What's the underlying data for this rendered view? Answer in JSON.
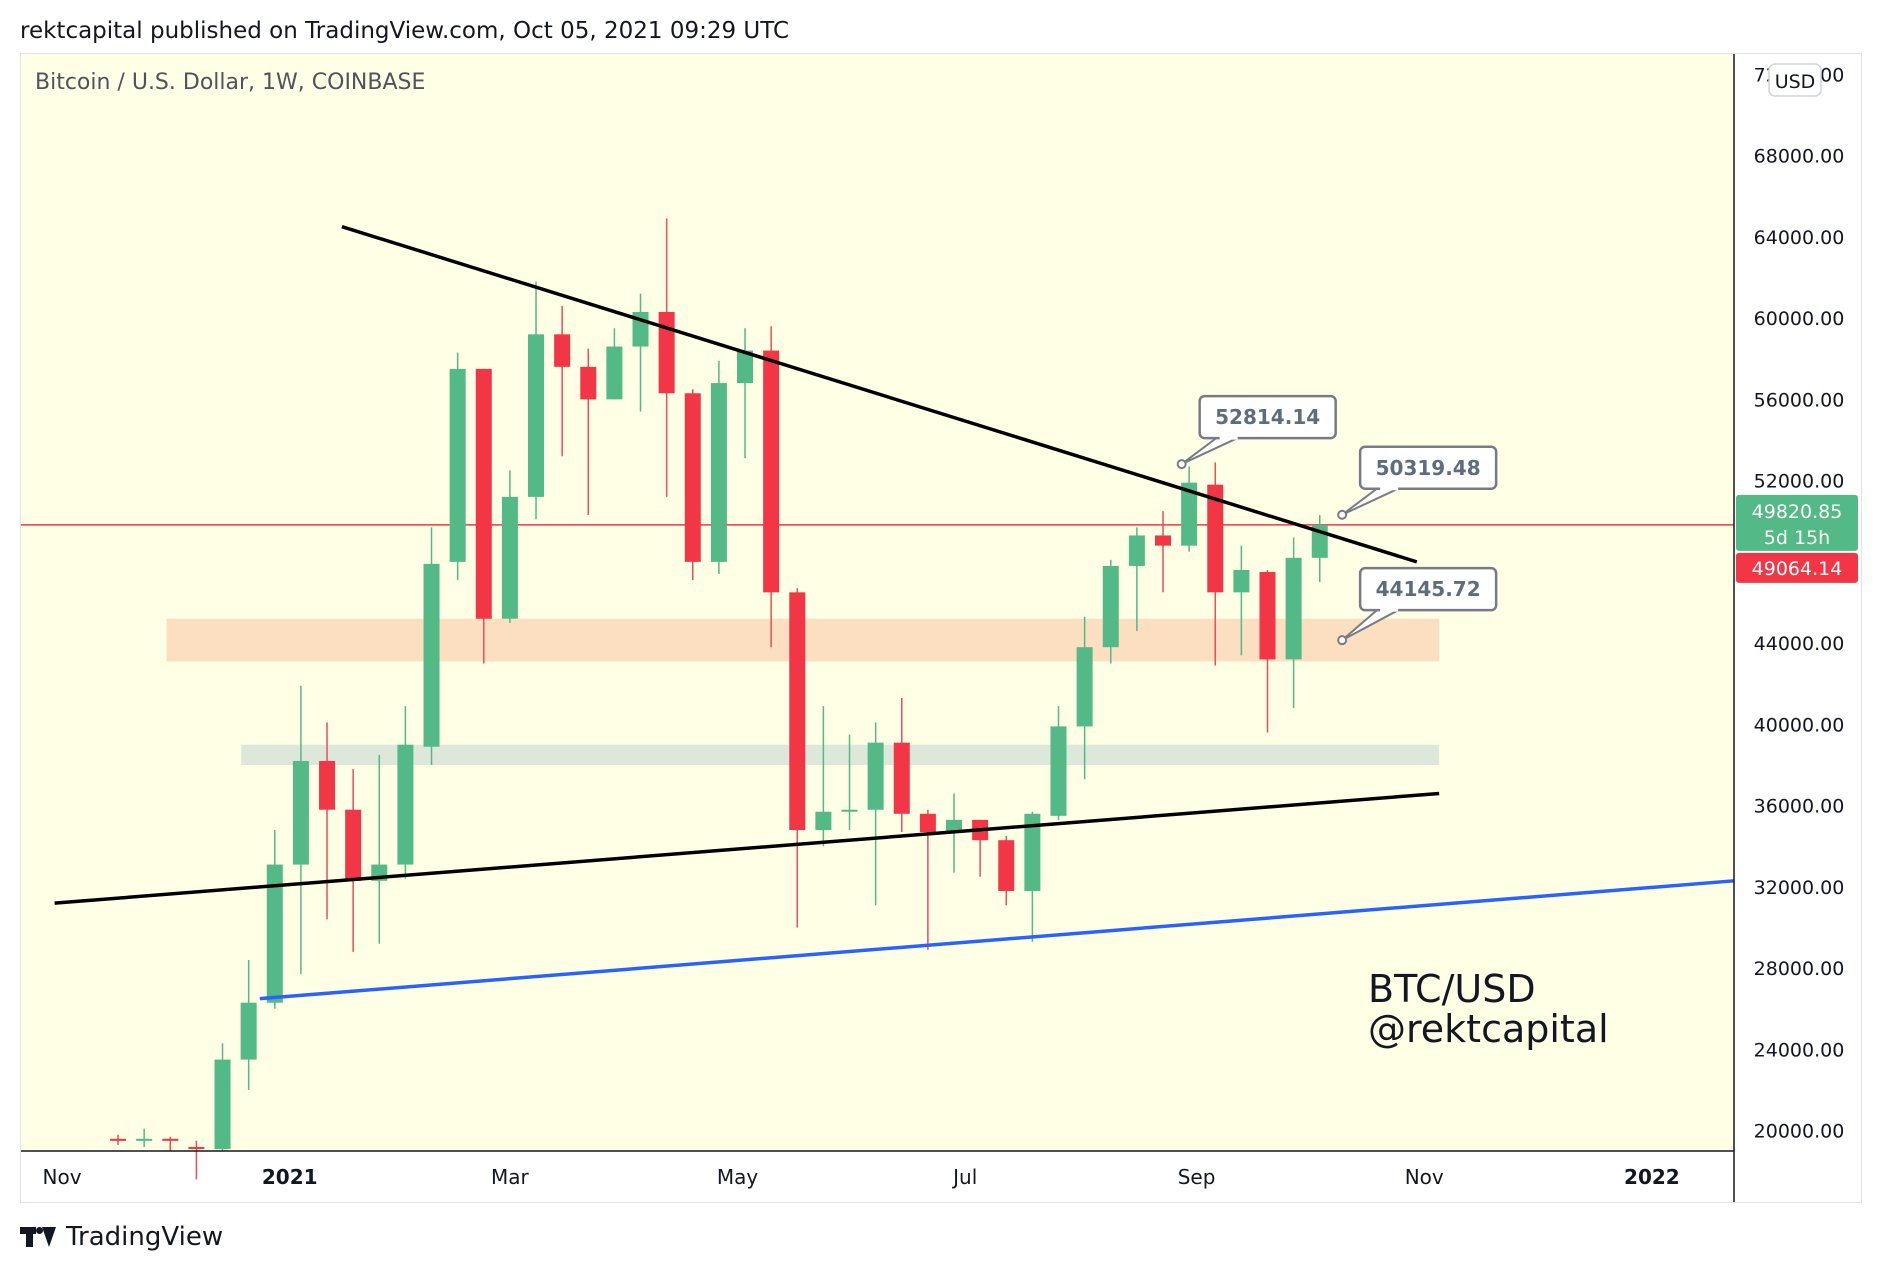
{
  "header": {
    "published": "rektcapital published on TradingView.com, Oct 05, 2021 09:29 UTC"
  },
  "legend": {
    "symbol": "Bitcoin / U.S. Dollar, 1W, COINBASE"
  },
  "currency_button": "USD",
  "price_labels": {
    "last_price": "49820.85",
    "countdown": "5d 15h",
    "prev_price": "49064.14"
  },
  "callouts": [
    {
      "text": "52814.14",
      "price": 52814.14
    },
    {
      "text": "50319.48",
      "price": 50319.48
    },
    {
      "text": "44145.72",
      "price": 44145.72
    }
  ],
  "watermark": {
    "line1": "BTC/USD",
    "line2": "@rektcapital"
  },
  "footer": {
    "brand": "TradingView"
  },
  "colors": {
    "background": "#ffffe6",
    "up": "#53b987",
    "down": "#eb4d5c",
    "down_body": "#f23645",
    "trendline": "#000000",
    "support_line": "#2962ff",
    "price_line": "#f23645",
    "resistance_zone": "#fcd9b8",
    "support_zone": "#d9e6d9",
    "callout_border": "#787b86",
    "callout_text": "#5d6d7e"
  },
  "chart_data": {
    "type": "candlestick",
    "title": "Bitcoin / U.S. Dollar, 1W, COINBASE",
    "ylim": [
      19000,
      73000
    ],
    "y_ticks": [
      {
        "value": 20000,
        "label": "20000.00"
      },
      {
        "value": 24000,
        "label": "24000.00"
      },
      {
        "value": 28000,
        "label": "28000.00"
      },
      {
        "value": 32000,
        "label": "32000.00"
      },
      {
        "value": 36000,
        "label": "36000.00"
      },
      {
        "value": 40000,
        "label": "40000.00"
      },
      {
        "value": 44000,
        "label": "44000.00"
      },
      {
        "value": 48000,
        "label": "48000.00"
      },
      {
        "value": 52000,
        "label": "52000.00"
      },
      {
        "value": 56000,
        "label": "56000.00"
      },
      {
        "value": 60000,
        "label": "60000.00"
      },
      {
        "value": 64000,
        "label": "64000.00"
      },
      {
        "value": 68000,
        "label": "68000.00"
      },
      {
        "value": 72000,
        "label": "72000.00"
      }
    ],
    "x_ticks": [
      {
        "date": "2020-11-01",
        "label": "Nov",
        "bold": false
      },
      {
        "date": "2021-01-01",
        "label": "2021",
        "bold": true
      },
      {
        "date": "2021-03-01",
        "label": "Mar",
        "bold": false
      },
      {
        "date": "2021-05-01",
        "label": "May",
        "bold": false
      },
      {
        "date": "2021-07-01",
        "label": "Jul",
        "bold": false
      },
      {
        "date": "2021-09-01",
        "label": "Sep",
        "bold": false
      },
      {
        "date": "2021-11-01",
        "label": "Nov",
        "bold": false
      },
      {
        "date": "2022-01-01",
        "label": "2022",
        "bold": true
      }
    ],
    "xlim": [
      "2020-10-21",
      "2022-01-23"
    ],
    "candles": [
      {
        "date": "2020-11-16",
        "open": 19600,
        "high": 19800,
        "low": 19300,
        "close": 19500
      },
      {
        "date": "2020-11-23",
        "open": 19500,
        "high": 20100,
        "low": 19200,
        "close": 19600
      },
      {
        "date": "2020-11-30",
        "open": 19600,
        "high": 19700,
        "low": 19000,
        "close": 19500
      },
      {
        "date": "2020-12-07",
        "open": 19200,
        "high": 19500,
        "low": 17600,
        "close": 19100
      },
      {
        "date": "2020-12-14",
        "open": 19100,
        "high": 24300,
        "low": 19000,
        "close": 23500
      },
      {
        "date": "2020-12-21",
        "open": 23500,
        "high": 28400,
        "low": 22000,
        "close": 26300
      },
      {
        "date": "2020-12-28",
        "open": 26300,
        "high": 34800,
        "low": 26000,
        "close": 33100
      },
      {
        "date": "2021-01-04",
        "open": 33100,
        "high": 41900,
        "low": 27700,
        "close": 38200
      },
      {
        "date": "2021-01-11",
        "open": 38200,
        "high": 40100,
        "low": 30400,
        "close": 35800
      },
      {
        "date": "2021-01-18",
        "open": 35800,
        "high": 37800,
        "low": 28800,
        "close": 32300
      },
      {
        "date": "2021-01-25",
        "open": 32300,
        "high": 38500,
        "low": 29200,
        "close": 33100
      },
      {
        "date": "2021-02-01",
        "open": 33100,
        "high": 40900,
        "low": 32400,
        "close": 39000
      },
      {
        "date": "2021-02-08",
        "open": 38900,
        "high": 49700,
        "low": 38000,
        "close": 47900
      },
      {
        "date": "2021-02-15",
        "open": 48000,
        "high": 58300,
        "low": 47100,
        "close": 57500
      },
      {
        "date": "2021-02-22",
        "open": 57500,
        "high": 57500,
        "low": 43000,
        "close": 45200
      },
      {
        "date": "2021-03-01",
        "open": 45200,
        "high": 52500,
        "low": 45000,
        "close": 51200
      },
      {
        "date": "2021-03-08",
        "open": 51200,
        "high": 61800,
        "low": 50100,
        "close": 59200
      },
      {
        "date": "2021-03-15",
        "open": 59200,
        "high": 60600,
        "low": 53200,
        "close": 57600
      },
      {
        "date": "2021-03-22",
        "open": 57600,
        "high": 58500,
        "low": 50300,
        "close": 56000
      },
      {
        "date": "2021-03-29",
        "open": 56000,
        "high": 59500,
        "low": 56000,
        "close": 58600
      },
      {
        "date": "2021-04-05",
        "open": 58600,
        "high": 61200,
        "low": 55400,
        "close": 60300
      },
      {
        "date": "2021-04-12",
        "open": 60300,
        "high": 64900,
        "low": 51200,
        "close": 56300
      },
      {
        "date": "2021-04-19",
        "open": 56300,
        "high": 56500,
        "low": 47100,
        "close": 48000
      },
      {
        "date": "2021-04-26",
        "open": 48000,
        "high": 57900,
        "low": 47400,
        "close": 56800
      },
      {
        "date": "2021-05-03",
        "open": 56800,
        "high": 59500,
        "low": 53100,
        "close": 58400
      },
      {
        "date": "2021-05-10",
        "open": 58400,
        "high": 59600,
        "low": 43800,
        "close": 46500
      },
      {
        "date": "2021-05-17",
        "open": 46500,
        "high": 46700,
        "low": 30000,
        "close": 34800
      },
      {
        "date": "2021-05-24",
        "open": 34800,
        "high": 40900,
        "low": 34000,
        "close": 35700
      },
      {
        "date": "2021-05-31",
        "open": 35700,
        "high": 39500,
        "low": 34800,
        "close": 35800
      },
      {
        "date": "2021-06-07",
        "open": 35800,
        "high": 40100,
        "low": 31100,
        "close": 39100
      },
      {
        "date": "2021-06-14",
        "open": 39100,
        "high": 41300,
        "low": 34700,
        "close": 35600
      },
      {
        "date": "2021-06-21",
        "open": 35600,
        "high": 35800,
        "low": 28900,
        "close": 34700
      },
      {
        "date": "2021-06-28",
        "open": 34700,
        "high": 36600,
        "low": 32700,
        "close": 35300
      },
      {
        "date": "2021-07-05",
        "open": 35300,
        "high": 35300,
        "low": 32500,
        "close": 34300
      },
      {
        "date": "2021-07-12",
        "open": 34300,
        "high": 34500,
        "low": 31100,
        "close": 31800
      },
      {
        "date": "2021-07-19",
        "open": 31800,
        "high": 35700,
        "low": 29300,
        "close": 35600
      },
      {
        "date": "2021-07-26",
        "open": 35500,
        "high": 40900,
        "low": 35300,
        "close": 39900
      },
      {
        "date": "2021-08-02",
        "open": 39900,
        "high": 45300,
        "low": 37300,
        "close": 43800
      },
      {
        "date": "2021-08-09",
        "open": 43800,
        "high": 48100,
        "low": 43000,
        "close": 47800
      },
      {
        "date": "2021-08-16",
        "open": 47800,
        "high": 49700,
        "low": 44600,
        "close": 49300
      },
      {
        "date": "2021-08-23",
        "open": 49300,
        "high": 50500,
        "low": 46500,
        "close": 48800
      },
      {
        "date": "2021-08-30",
        "open": 48800,
        "high": 52700,
        "low": 48500,
        "close": 51900
      },
      {
        "date": "2021-09-06",
        "open": 51800,
        "high": 52900,
        "low": 42900,
        "close": 46500
      },
      {
        "date": "2021-09-13",
        "open": 46500,
        "high": 48800,
        "low": 43400,
        "close": 47600
      },
      {
        "date": "2021-09-20",
        "open": 47500,
        "high": 47600,
        "low": 39600,
        "close": 43200
      },
      {
        "date": "2021-09-27",
        "open": 43200,
        "high": 49200,
        "low": 40800,
        "close": 48200
      },
      {
        "date": "2021-10-04",
        "open": 48200,
        "high": 50300,
        "low": 47000,
        "close": 49820.85
      }
    ],
    "annotations": {
      "resistance_trendline": {
        "from": {
          "date": "2021-01-15",
          "price": 64500
        },
        "to": {
          "date": "2021-10-30",
          "price": 48000
        }
      },
      "support_trendline": {
        "from": {
          "date": "2020-10-30",
          "price": 31200
        },
        "to": {
          "date": "2021-11-05",
          "price": 36600
        }
      },
      "long_support_line": {
        "from": {
          "date": "2020-12-24",
          "price": 26500
        },
        "to": {
          "date": "2022-01-23",
          "price": 32300
        }
      },
      "resistance_zone": {
        "from": "2020-11-29",
        "to": "2021-11-05",
        "low": 43100,
        "high": 45200
      },
      "support_zone": {
        "from": "2020-12-19",
        "to": "2021-11-05",
        "low": 38000,
        "high": 39000
      },
      "price_line": 49820.85,
      "callout_points": [
        {
          "date": "2021-08-28",
          "price": 52814.14
        },
        {
          "date": "2021-10-10",
          "price": 50319.48
        },
        {
          "date": "2021-10-10",
          "price": 44145.72
        }
      ]
    },
    "last_price": 49820.85,
    "prev_close": 49064.14
  }
}
